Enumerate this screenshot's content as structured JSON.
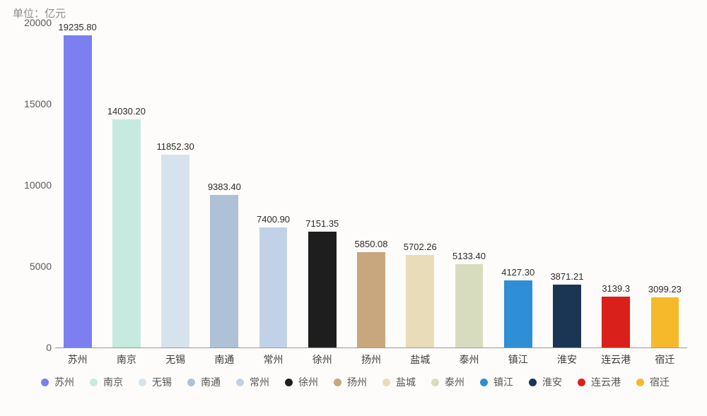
{
  "chart": {
    "type": "bar",
    "unit_label": "单位：亿元",
    "background_color": "#fdfcfa",
    "text_color": "#3d3d3d",
    "ylim": [
      0,
      20000
    ],
    "yticks": [
      0,
      5000,
      10000,
      15000,
      20000
    ],
    "ytick_fontsize": 14,
    "value_label_fontsize": 13,
    "category_fontsize": 14,
    "bar_width_ratio": 0.72,
    "series": [
      {
        "name": "苏州",
        "value": 19235.8,
        "color": "#7b7ff0",
        "value_text": "19235.80"
      },
      {
        "name": "南京",
        "value": 14030.2,
        "color": "#c6eae0",
        "value_text": "14030.20"
      },
      {
        "name": "无锡",
        "value": 11852.3,
        "color": "#d6e3ec",
        "value_text": "11852.30"
      },
      {
        "name": "南通",
        "value": 9383.4,
        "color": "#aec1d6",
        "value_text": "9383.40"
      },
      {
        "name": "常州",
        "value": 7400.9,
        "color": "#c2d2e6",
        "value_text": "7400.90"
      },
      {
        "name": "徐州",
        "value": 7151.35,
        "color": "#1e1e1e",
        "value_text": "7151.35"
      },
      {
        "name": "扬州",
        "value": 5850.08,
        "color": "#c9a77e",
        "value_text": "5850.08"
      },
      {
        "name": "盐城",
        "value": 5702.26,
        "color": "#e9dcb9",
        "value_text": "5702.26"
      },
      {
        "name": "泰州",
        "value": 5133.4,
        "color": "#d8dcbf",
        "value_text": "5133.40"
      },
      {
        "name": "镇江",
        "value": 4127.3,
        "color": "#2f8fd6",
        "value_text": "4127.30"
      },
      {
        "name": "淮安",
        "value": 3871.21,
        "color": "#1b3554",
        "value_text": "3871.21"
      },
      {
        "name": "连云港",
        "value": 3139.3,
        "color": "#d9201a",
        "value_text": "3139.3"
      },
      {
        "name": "宿迁",
        "value": 3099.23,
        "color": "#f5b92b",
        "value_text": "3099.23"
      }
    ]
  }
}
